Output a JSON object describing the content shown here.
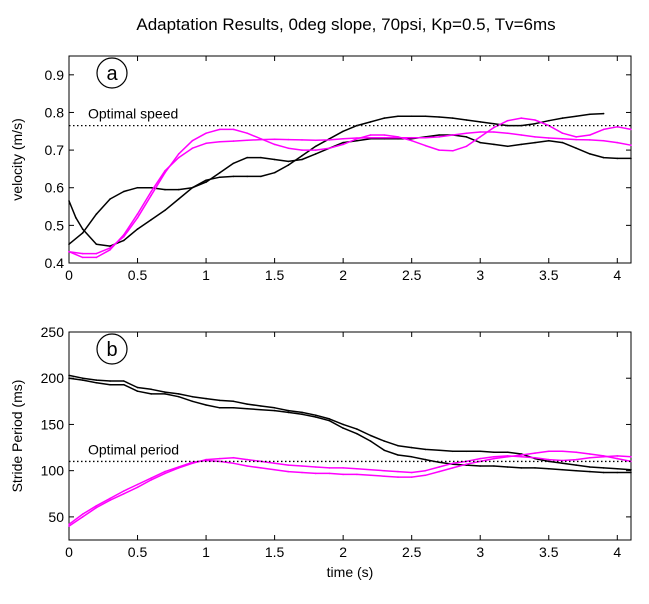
{
  "title": "Adaptation Results, 0deg slope, 70psi, Kp=0.5, Tv=6ms",
  "chart_data": [
    {
      "type": "line",
      "panel_label": "a",
      "ylabel": "velocity (m/s)",
      "xlabel": "",
      "xlim": [
        0,
        4.1
      ],
      "ylim": [
        0.4,
        0.95
      ],
      "xticks": [
        "0",
        "0.5",
        "1",
        "1.5",
        "2",
        "2.5",
        "3",
        "3.5",
        "4"
      ],
      "yticks": [
        "0.4",
        "0.5",
        "0.6",
        "0.7",
        "0.8",
        "0.9"
      ],
      "reference": {
        "label": "Optimal speed",
        "y": 0.765,
        "style": "dotted"
      },
      "series": [
        {
          "color": "#000000",
          "x": [
            0,
            0.1,
            0.2,
            0.3,
            0.4,
            0.5,
            0.6,
            0.7,
            0.8,
            0.9,
            1.0,
            1.1,
            1.2,
            1.3,
            1.4,
            1.5,
            1.6,
            1.7,
            1.8,
            1.9,
            2.0,
            2.1,
            2.2,
            2.3,
            2.4,
            2.5,
            2.6,
            2.7,
            2.8,
            2.9,
            3.0,
            3.1,
            3.2,
            3.3,
            3.4,
            3.5,
            3.6,
            3.7,
            3.8,
            3.9,
            4.0,
            4.1
          ],
          "y": [
            0.45,
            0.48,
            0.53,
            0.57,
            0.59,
            0.6,
            0.6,
            0.595,
            0.595,
            0.6,
            0.615,
            0.64,
            0.665,
            0.68,
            0.68,
            0.675,
            0.67,
            0.675,
            0.69,
            0.705,
            0.72,
            0.725,
            0.73,
            0.73,
            0.73,
            0.73,
            0.735,
            0.74,
            0.74,
            0.735,
            0.72,
            0.715,
            0.71,
            0.715,
            0.72,
            0.725,
            0.72,
            0.705,
            0.69,
            0.68,
            0.678,
            0.678
          ]
        },
        {
          "color": "#000000",
          "x": [
            0,
            0.05,
            0.1,
            0.2,
            0.3,
            0.4,
            0.5,
            0.6,
            0.7,
            0.8,
            0.9,
            1.0,
            1.1,
            1.2,
            1.3,
            1.4,
            1.5,
            1.6,
            1.7,
            1.8,
            1.9,
            2.0,
            2.1,
            2.2,
            2.3,
            2.4,
            2.5,
            2.6,
            2.7,
            2.8,
            2.9,
            3.0,
            3.1,
            3.2,
            3.3,
            3.4,
            3.5,
            3.6,
            3.7,
            3.8,
            3.9
          ],
          "y": [
            0.565,
            0.52,
            0.49,
            0.45,
            0.445,
            0.46,
            0.49,
            0.515,
            0.54,
            0.57,
            0.6,
            0.62,
            0.628,
            0.63,
            0.63,
            0.63,
            0.64,
            0.66,
            0.685,
            0.71,
            0.73,
            0.75,
            0.765,
            0.775,
            0.785,
            0.79,
            0.79,
            0.79,
            0.788,
            0.785,
            0.78,
            0.775,
            0.77,
            0.765,
            0.765,
            0.77,
            0.778,
            0.785,
            0.79,
            0.795,
            0.797
          ]
        },
        {
          "color": "#ff00ff",
          "x": [
            0,
            0.1,
            0.2,
            0.3,
            0.4,
            0.5,
            0.6,
            0.7,
            0.8,
            0.9,
            1.0,
            1.1,
            1.2,
            1.3,
            1.4,
            1.5,
            1.6,
            1.7,
            1.8,
            1.9,
            2.0,
            2.1,
            2.2,
            2.3,
            2.4,
            2.5,
            2.6,
            2.7,
            2.8,
            2.9,
            3.0,
            3.1,
            3.2,
            3.3,
            3.4,
            3.5,
            3.6,
            3.7,
            3.8,
            3.9,
            4.0,
            4.1
          ],
          "y": [
            0.43,
            0.425,
            0.425,
            0.44,
            0.47,
            0.52,
            0.58,
            0.64,
            0.69,
            0.725,
            0.745,
            0.755,
            0.755,
            0.745,
            0.73,
            0.715,
            0.705,
            0.7,
            0.7,
            0.705,
            0.715,
            0.73,
            0.74,
            0.74,
            0.735,
            0.725,
            0.712,
            0.7,
            0.698,
            0.71,
            0.735,
            0.76,
            0.778,
            0.785,
            0.78,
            0.765,
            0.745,
            0.735,
            0.74,
            0.755,
            0.762,
            0.755
          ]
        },
        {
          "color": "#ff00ff",
          "x": [
            0,
            0.1,
            0.2,
            0.3,
            0.4,
            0.5,
            0.6,
            0.7,
            0.8,
            0.9,
            1.0,
            1.1,
            1.2,
            1.3,
            1.4,
            1.5,
            1.6,
            1.7,
            1.8,
            1.9,
            2.0,
            2.1,
            2.2,
            2.3,
            2.4,
            2.5,
            2.6,
            2.7,
            2.8,
            2.9,
            3.0,
            3.1,
            3.2,
            3.3,
            3.4,
            3.5,
            3.6,
            3.7,
            3.8,
            3.9,
            4.0,
            4.1
          ],
          "y": [
            0.43,
            0.415,
            0.415,
            0.435,
            0.475,
            0.53,
            0.59,
            0.645,
            0.68,
            0.705,
            0.718,
            0.722,
            0.724,
            0.726,
            0.728,
            0.729,
            0.728,
            0.727,
            0.726,
            0.727,
            0.73,
            0.732,
            0.733,
            0.733,
            0.733,
            0.733,
            0.733,
            0.735,
            0.74,
            0.745,
            0.748,
            0.748,
            0.745,
            0.74,
            0.735,
            0.732,
            0.73,
            0.728,
            0.727,
            0.725,
            0.72,
            0.713
          ]
        }
      ]
    },
    {
      "type": "line",
      "panel_label": "b",
      "ylabel": "Stride Period (ms)",
      "xlabel": "time (s)",
      "xlim": [
        0,
        4.1
      ],
      "ylim": [
        25,
        250
      ],
      "xticks": [
        "0",
        "0.5",
        "1",
        "1.5",
        "2",
        "2.5",
        "3",
        "3.5",
        "4"
      ],
      "yticks": [
        "50",
        "100",
        "150",
        "200",
        "250"
      ],
      "reference": {
        "label": "Optimal period",
        "y": 110,
        "style": "dotted"
      },
      "series": [
        {
          "color": "#000000",
          "x": [
            0,
            0.1,
            0.2,
            0.3,
            0.4,
            0.5,
            0.6,
            0.7,
            0.8,
            0.9,
            1.0,
            1.1,
            1.2,
            1.3,
            1.4,
            1.5,
            1.6,
            1.7,
            1.8,
            1.9,
            2.0,
            2.1,
            2.2,
            2.3,
            2.4,
            2.5,
            2.6,
            2.7,
            2.8,
            2.9,
            3.0,
            3.1,
            3.2,
            3.3,
            3.4,
            3.5,
            3.6,
            3.7,
            3.8,
            3.9,
            4.0,
            4.1
          ],
          "y": [
            203,
            200,
            198,
            197,
            197,
            190,
            188,
            185,
            183,
            180,
            178,
            176,
            175,
            172,
            170,
            168,
            165,
            163,
            160,
            156,
            150,
            145,
            138,
            132,
            127,
            125,
            123,
            122,
            121,
            121,
            121,
            120,
            120,
            118,
            113,
            110,
            108,
            106,
            104,
            103,
            102,
            101
          ]
        },
        {
          "color": "#000000",
          "x": [
            0,
            0.1,
            0.2,
            0.3,
            0.4,
            0.5,
            0.6,
            0.7,
            0.8,
            0.9,
            1.0,
            1.1,
            1.2,
            1.3,
            1.4,
            1.5,
            1.6,
            1.7,
            1.8,
            1.9,
            2.0,
            2.1,
            2.2,
            2.3,
            2.4,
            2.5,
            2.6,
            2.7,
            2.8,
            2.9,
            3.0,
            3.1,
            3.2,
            3.3,
            3.4,
            3.5,
            3.6,
            3.7,
            3.8,
            3.9,
            4.0,
            4.1
          ],
          "y": [
            200,
            198,
            195,
            193,
            193,
            186,
            183,
            183,
            180,
            175,
            171,
            168,
            168,
            167,
            166,
            165,
            163,
            161,
            158,
            154,
            146,
            140,
            132,
            122,
            117,
            115,
            112,
            109,
            107,
            106,
            105,
            105,
            104,
            103,
            103,
            102,
            101,
            100,
            99,
            98,
            98,
            98
          ]
        },
        {
          "color": "#ff00ff",
          "x": [
            0,
            0.1,
            0.2,
            0.3,
            0.4,
            0.5,
            0.6,
            0.7,
            0.8,
            0.9,
            1.0,
            1.1,
            1.2,
            1.3,
            1.4,
            1.5,
            1.6,
            1.7,
            1.8,
            1.9,
            2.0,
            2.1,
            2.2,
            2.3,
            2.4,
            2.5,
            2.6,
            2.7,
            2.8,
            2.9,
            3.0,
            3.1,
            3.2,
            3.3,
            3.4,
            3.5,
            3.6,
            3.7,
            3.8,
            3.9,
            4.0,
            4.1
          ],
          "y": [
            40,
            50,
            60,
            68,
            75,
            82,
            90,
            97,
            103,
            108,
            112,
            113,
            114,
            112,
            110,
            108,
            106,
            105,
            104,
            103,
            103,
            102,
            101,
            100,
            99,
            98,
            100,
            104,
            108,
            110,
            113,
            115,
            116,
            115,
            114,
            112,
            111,
            112,
            114,
            115,
            116,
            115
          ]
        },
        {
          "color": "#ff00ff",
          "x": [
            0,
            0.1,
            0.2,
            0.3,
            0.4,
            0.5,
            0.6,
            0.7,
            0.8,
            0.9,
            1.0,
            1.1,
            1.2,
            1.3,
            1.4,
            1.5,
            1.6,
            1.7,
            1.8,
            1.9,
            2.0,
            2.1,
            2.2,
            2.3,
            2.4,
            2.5,
            2.6,
            2.7,
            2.8,
            2.9,
            3.0,
            3.1,
            3.2,
            3.3,
            3.4,
            3.5,
            3.6,
            3.7,
            3.8,
            3.9,
            4.0,
            4.1
          ],
          "y": [
            42,
            53,
            62,
            70,
            78,
            85,
            92,
            99,
            104,
            109,
            111,
            110,
            108,
            105,
            103,
            101,
            99,
            98,
            97,
            97,
            96,
            96,
            95,
            94,
            93,
            93,
            95,
            99,
            103,
            107,
            110,
            113,
            115,
            117,
            119,
            121,
            121,
            120,
            118,
            116,
            113,
            110
          ]
        }
      ]
    }
  ]
}
